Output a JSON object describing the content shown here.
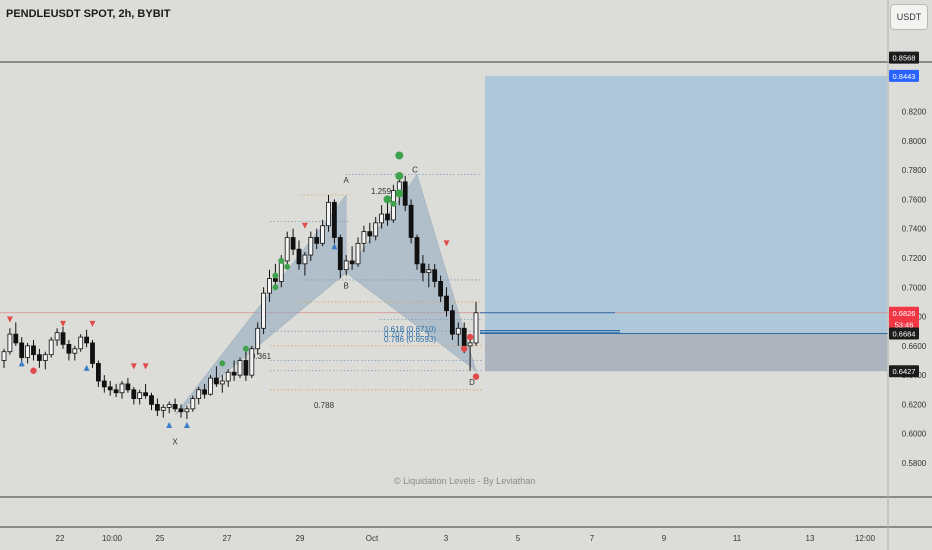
{
  "header": {
    "symbol_title": "PENDLEUSDT SPOT, 2h, BYBIT",
    "currency_button": "USDT"
  },
  "watermark": "© Liquidation Levels - By Leviathan",
  "colors": {
    "background": "#dcdcd9",
    "bull_candle": "#f4f4f4",
    "bear_candle": "#111111",
    "pattern_fill": "#8fa9c0",
    "target_zone": "#a9c4d8",
    "stop_zone": "#a7afba",
    "current_price_tag": "#f23645",
    "last_price_tag": "#1c1c1c",
    "target_tag": "#2962ff",
    "bull_marker": "#3fa34d",
    "bear_marker": "#e04a4a"
  },
  "chart_data": {
    "type": "candlestick",
    "symbol": "PENDLEUSDT",
    "exchange": "BYBIT",
    "interval": "2h",
    "y_axis": {
      "ylim": [
        0.565,
        0.862
      ],
      "ticks": [
        "0.5800",
        "0.6000",
        "0.6200",
        "0.6400",
        "0.6600",
        "0.6800",
        "0.7000",
        "0.7200",
        "0.7400",
        "0.7600",
        "0.7800",
        "0.8000",
        "0.8200"
      ]
    },
    "x_axis": {
      "ticks": [
        "22",
        "10:00",
        "25",
        "27",
        "29",
        "Oct",
        "3",
        "5",
        "7",
        "9",
        "11",
        "13",
        "12:00"
      ]
    },
    "price_tags": [
      {
        "label": "0.8568",
        "value": 0.8568,
        "kind": "dark"
      },
      {
        "label": "0.8443",
        "value": 0.8443,
        "kind": "blue"
      },
      {
        "label": "0.6826",
        "value": 0.6826,
        "kind": "red"
      },
      {
        "label": "53:46",
        "value": 0.6747,
        "kind": "red"
      },
      {
        "label": "0.6684",
        "value": 0.6684,
        "kind": "dark"
      },
      {
        "label": "0.6427",
        "value": 0.6427,
        "kind": "dark"
      }
    ],
    "harmonic_pattern": {
      "points": [
        {
          "label": "X",
          "price": 0.613
        },
        {
          "label": "A",
          "price": 0.763
        },
        {
          "label": "B",
          "price": 0.71
        },
        {
          "label": "C",
          "price": 0.777
        },
        {
          "label": "D",
          "price": 0.643
        }
      ],
      "ratios": [
        "0.361",
        "0.788",
        "1.259"
      ],
      "fib_labels": [
        "0.618 (0.6710)",
        "0.707 (0.6...)",
        "0.786 (0.6593)"
      ]
    },
    "position_zones": {
      "entry": 0.6684,
      "target": 0.8443,
      "stop": 0.6427
    },
    "candles": [
      [
        0.65,
        0.658,
        0.645,
        0.656
      ],
      [
        0.656,
        0.672,
        0.654,
        0.668
      ],
      [
        0.668,
        0.676,
        0.66,
        0.662
      ],
      [
        0.662,
        0.666,
        0.648,
        0.652
      ],
      [
        0.652,
        0.662,
        0.648,
        0.66
      ],
      [
        0.66,
        0.664,
        0.65,
        0.654
      ],
      [
        0.654,
        0.658,
        0.645,
        0.65
      ],
      [
        0.65,
        0.656,
        0.644,
        0.654
      ],
      [
        0.654,
        0.666,
        0.652,
        0.664
      ],
      [
        0.664,
        0.672,
        0.66,
        0.669
      ],
      [
        0.669,
        0.673,
        0.658,
        0.661
      ],
      [
        0.661,
        0.664,
        0.65,
        0.655
      ],
      [
        0.655,
        0.66,
        0.65,
        0.658
      ],
      [
        0.658,
        0.668,
        0.656,
        0.666
      ],
      [
        0.666,
        0.671,
        0.659,
        0.662
      ],
      [
        0.662,
        0.664,
        0.645,
        0.648
      ],
      [
        0.648,
        0.65,
        0.632,
        0.636
      ],
      [
        0.636,
        0.64,
        0.628,
        0.632
      ],
      [
        0.632,
        0.636,
        0.626,
        0.63
      ],
      [
        0.63,
        0.634,
        0.625,
        0.628
      ],
      [
        0.628,
        0.636,
        0.624,
        0.634
      ],
      [
        0.634,
        0.638,
        0.628,
        0.63
      ],
      [
        0.63,
        0.632,
        0.62,
        0.624
      ],
      [
        0.624,
        0.63,
        0.62,
        0.628
      ],
      [
        0.628,
        0.634,
        0.624,
        0.626
      ],
      [
        0.626,
        0.628,
        0.616,
        0.62
      ],
      [
        0.62,
        0.624,
        0.612,
        0.616
      ],
      [
        0.616,
        0.62,
        0.611,
        0.618
      ],
      [
        0.618,
        0.622,
        0.614,
        0.62
      ],
      [
        0.62,
        0.624,
        0.615,
        0.617
      ],
      [
        0.617,
        0.62,
        0.611,
        0.615
      ],
      [
        0.615,
        0.619,
        0.61,
        0.617
      ],
      [
        0.617,
        0.626,
        0.615,
        0.624
      ],
      [
        0.624,
        0.632,
        0.62,
        0.63
      ],
      [
        0.63,
        0.634,
        0.624,
        0.627
      ],
      [
        0.627,
        0.64,
        0.626,
        0.638
      ],
      [
        0.638,
        0.646,
        0.632,
        0.634
      ],
      [
        0.634,
        0.64,
        0.628,
        0.636
      ],
      [
        0.636,
        0.644,
        0.632,
        0.642
      ],
      [
        0.642,
        0.65,
        0.636,
        0.64
      ],
      [
        0.64,
        0.652,
        0.638,
        0.65
      ],
      [
        0.65,
        0.656,
        0.636,
        0.64
      ],
      [
        0.64,
        0.66,
        0.638,
        0.658
      ],
      [
        0.658,
        0.676,
        0.654,
        0.672
      ],
      [
        0.672,
        0.7,
        0.668,
        0.696
      ],
      [
        0.696,
        0.712,
        0.69,
        0.706
      ],
      [
        0.706,
        0.716,
        0.7,
        0.704
      ],
      [
        0.704,
        0.722,
        0.7,
        0.718
      ],
      [
        0.718,
        0.738,
        0.714,
        0.734
      ],
      [
        0.734,
        0.74,
        0.722,
        0.726
      ],
      [
        0.726,
        0.732,
        0.712,
        0.716
      ],
      [
        0.716,
        0.724,
        0.708,
        0.722
      ],
      [
        0.722,
        0.738,
        0.718,
        0.734
      ],
      [
        0.734,
        0.74,
        0.726,
        0.73
      ],
      [
        0.73,
        0.746,
        0.728,
        0.742
      ],
      [
        0.742,
        0.763,
        0.738,
        0.758
      ],
      [
        0.758,
        0.76,
        0.73,
        0.734
      ],
      [
        0.734,
        0.736,
        0.706,
        0.712
      ],
      [
        0.712,
        0.722,
        0.708,
        0.718
      ],
      [
        0.718,
        0.728,
        0.712,
        0.716
      ],
      [
        0.716,
        0.734,
        0.714,
        0.73
      ],
      [
        0.73,
        0.742,
        0.724,
        0.738
      ],
      [
        0.738,
        0.744,
        0.73,
        0.735
      ],
      [
        0.735,
        0.748,
        0.732,
        0.744
      ],
      [
        0.744,
        0.756,
        0.74,
        0.75
      ],
      [
        0.75,
        0.76,
        0.742,
        0.746
      ],
      [
        0.746,
        0.77,
        0.744,
        0.766
      ],
      [
        0.766,
        0.777,
        0.756,
        0.772
      ],
      [
        0.772,
        0.776,
        0.752,
        0.756
      ],
      [
        0.756,
        0.76,
        0.73,
        0.734
      ],
      [
        0.734,
        0.736,
        0.712,
        0.716
      ],
      [
        0.716,
        0.722,
        0.704,
        0.71
      ],
      [
        0.71,
        0.716,
        0.7,
        0.712
      ],
      [
        0.712,
        0.716,
        0.7,
        0.704
      ],
      [
        0.704,
        0.708,
        0.69,
        0.694
      ],
      [
        0.694,
        0.7,
        0.68,
        0.684
      ],
      [
        0.684,
        0.688,
        0.664,
        0.668
      ],
      [
        0.668,
        0.676,
        0.66,
        0.672
      ],
      [
        0.672,
        0.676,
        0.655,
        0.66
      ],
      [
        0.66,
        0.664,
        0.643,
        0.662
      ],
      [
        0.662,
        0.69,
        0.66,
        0.6826
      ]
    ]
  }
}
